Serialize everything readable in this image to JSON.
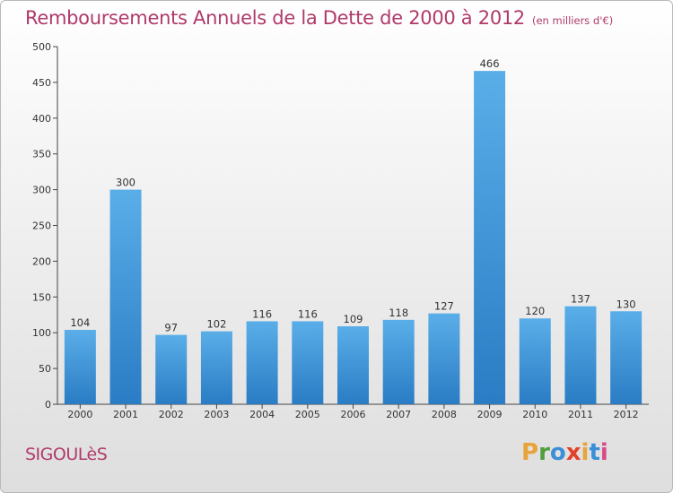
{
  "title": "Remboursements Annuels de la Dette de 2000 à 2012",
  "unit": "(en milliers d'€)",
  "town": "SIGOULèS",
  "brand": {
    "letters": [
      "P",
      "r",
      "o",
      "x",
      "i",
      "t",
      "i"
    ],
    "colors": [
      "#e8a33a",
      "#4f9f3e",
      "#3b8fd8",
      "#e2412d",
      "#e8a33a",
      "#3b8fd8",
      "#d84a8a"
    ]
  },
  "colors": {
    "bar_light": "#5aaee8",
    "bar_dark": "#2a7cc4",
    "title": "#b03a6a"
  },
  "chart_data": {
    "type": "bar",
    "categories": [
      "2000",
      "2001",
      "2002",
      "2003",
      "2004",
      "2005",
      "2006",
      "2007",
      "2008",
      "2009",
      "2010",
      "2011",
      "2012"
    ],
    "values": [
      104,
      300,
      97,
      102,
      116,
      116,
      109,
      118,
      127,
      466,
      120,
      137,
      130
    ],
    "ylim": [
      0,
      500
    ],
    "yticks": [
      0,
      50,
      100,
      150,
      200,
      250,
      300,
      350,
      400,
      450,
      500
    ],
    "grid": false,
    "xlabel": "",
    "ylabel": ""
  }
}
